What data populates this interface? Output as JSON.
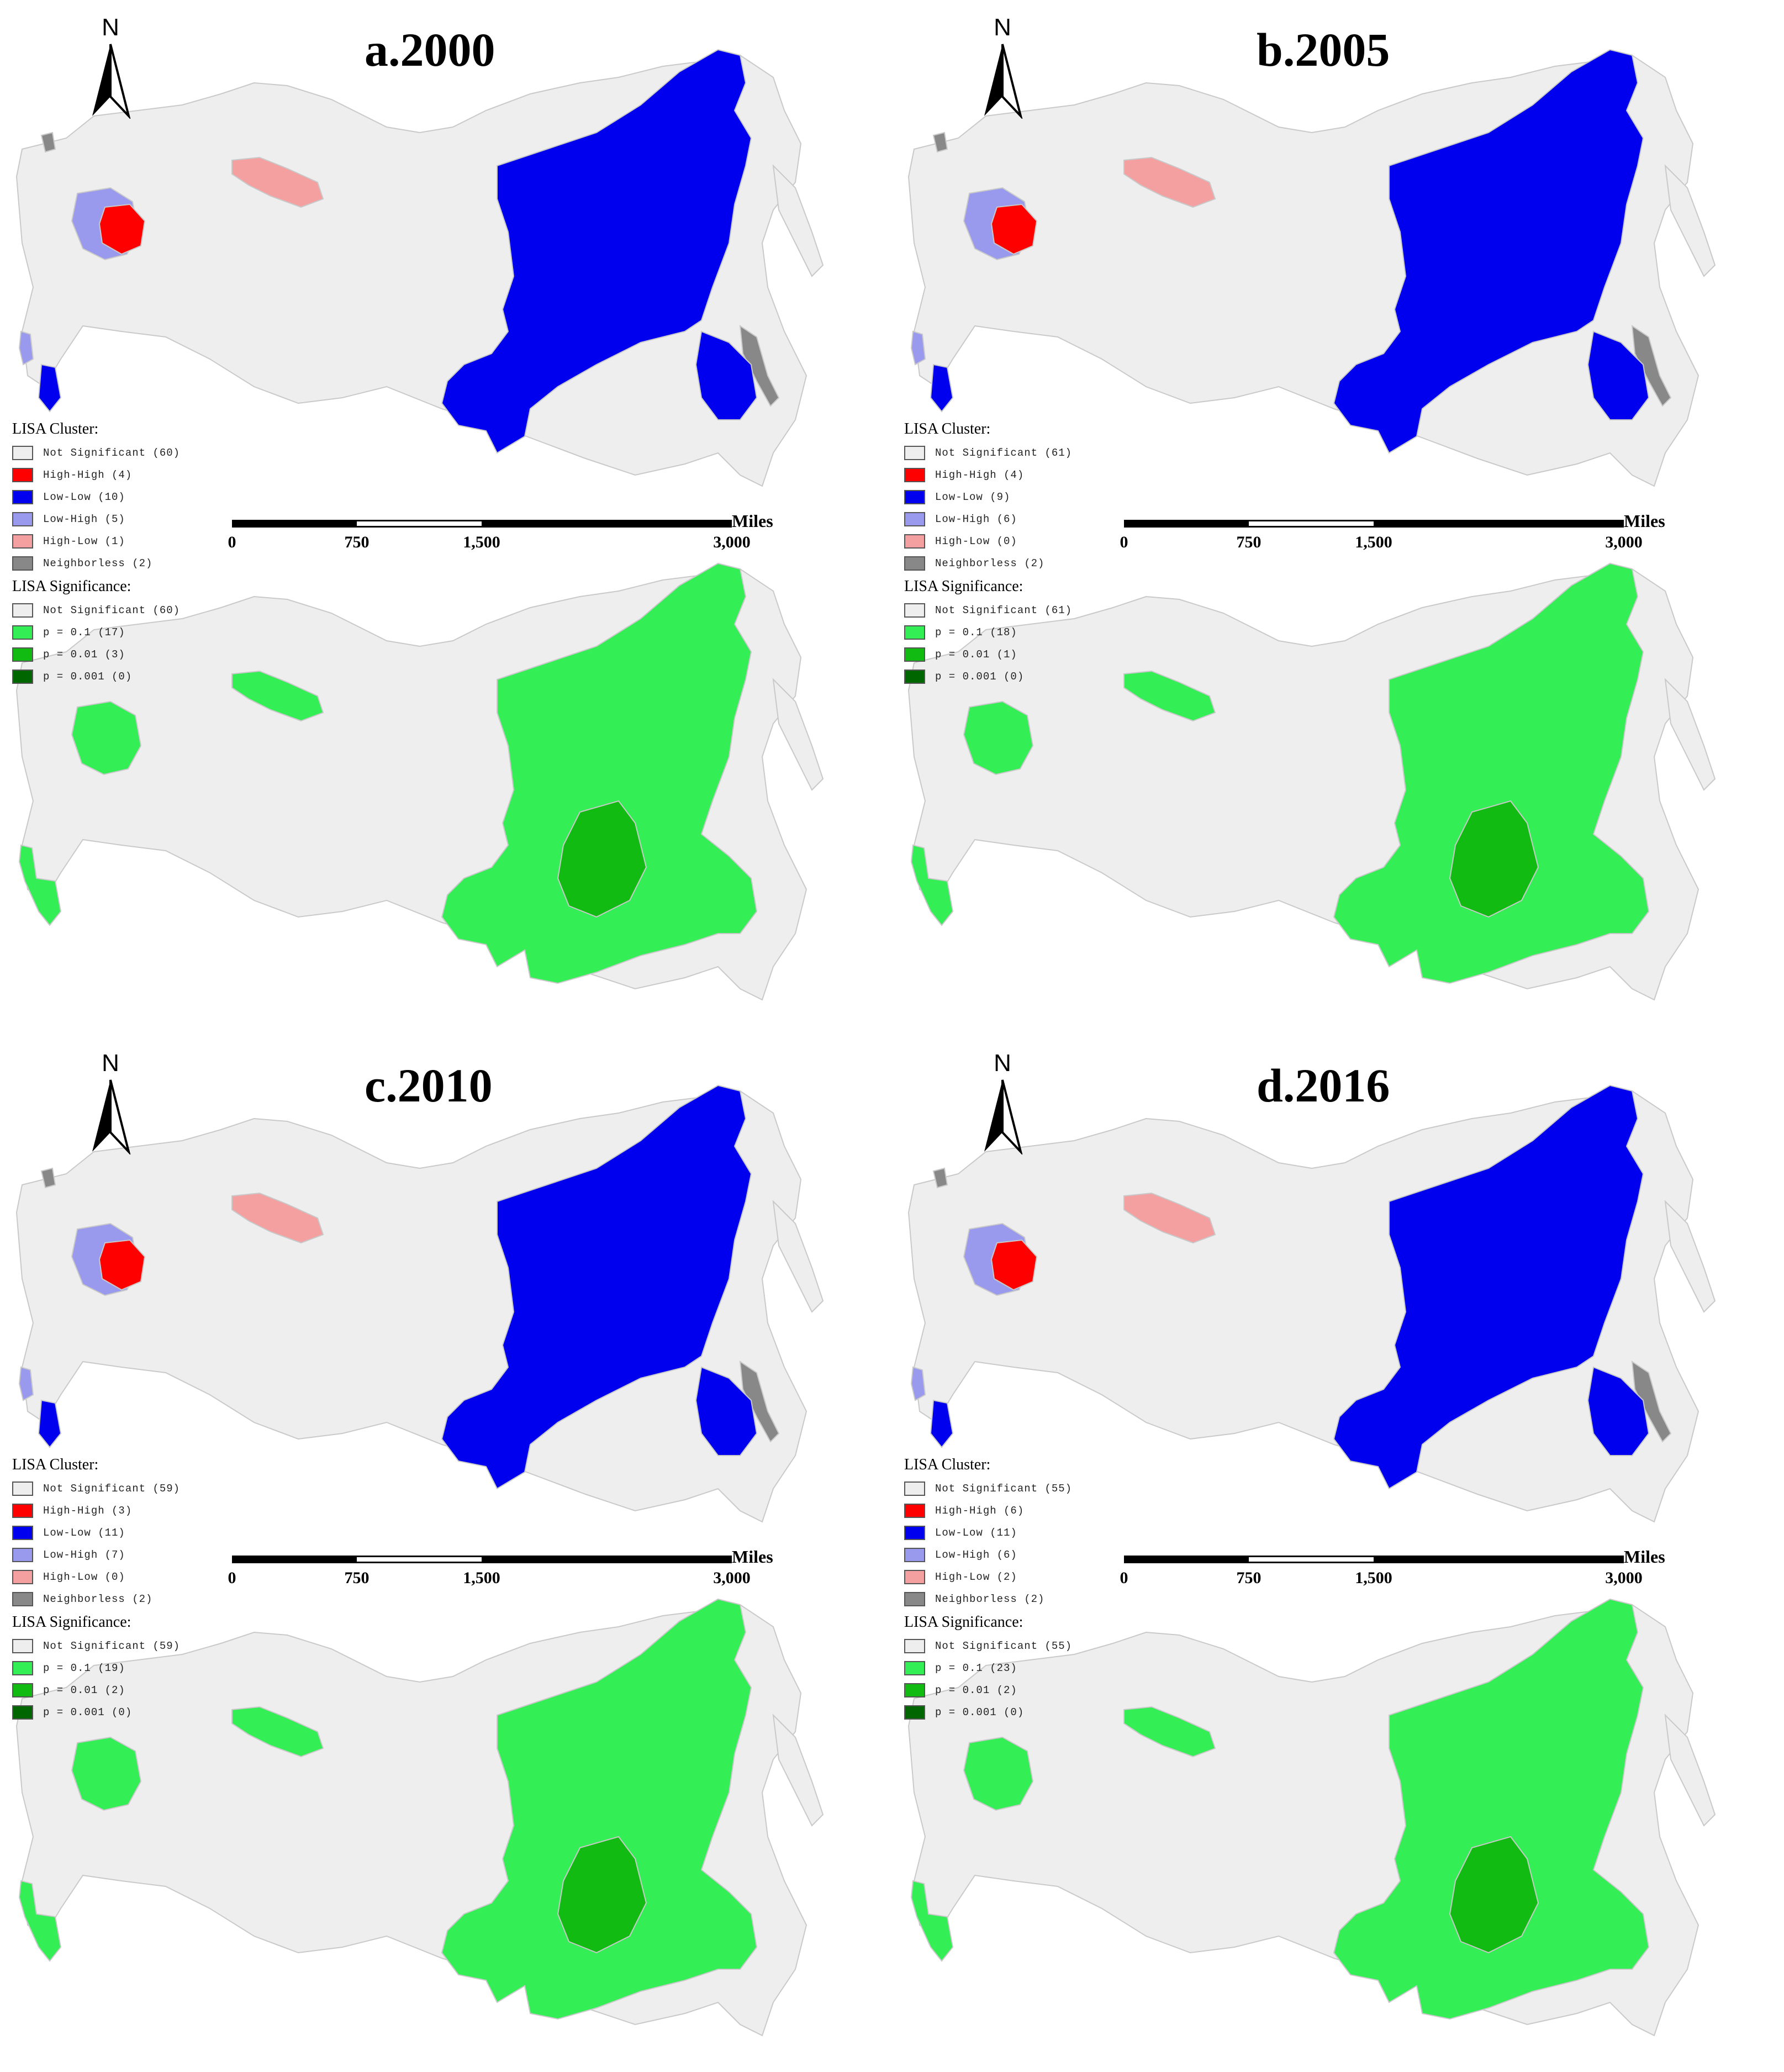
{
  "colors": {
    "not_significant": "#eeeeee",
    "high_high": "#ff0000",
    "low_low": "#0000ee",
    "low_high": "#9999ee",
    "high_low": "#f4a0a0",
    "neighborless": "#888888",
    "p_0_1": "#33ee55",
    "p_0_01": "#11bb11",
    "p_0_001": "#006600",
    "border": "#c9c9c9"
  },
  "north_label": "N",
  "scale": {
    "unit": "Miles",
    "ticks": [
      "0",
      "750",
      "1,500",
      "3,000"
    ]
  },
  "cluster_legend_title": "LISA Cluster:",
  "significance_legend_title": "LISA Significance:",
  "panels": [
    {
      "title": "a.2000",
      "cluster": {
        "not_significant": "Not Significant (60)",
        "high_high": "High-High (4)",
        "low_low": "Low-Low (10)",
        "low_high": "Low-High (5)",
        "high_low": "High-Low (1)",
        "neighborless": "Neighborless (2)"
      },
      "significance": {
        "not_significant": "Not Significant (60)",
        "p_0_1": "p = 0.1 (17)",
        "p_0_01": "p = 0.01 (3)",
        "p_0_001": "p = 0.001 (0)"
      }
    },
    {
      "title": "b.2005",
      "cluster": {
        "not_significant": "Not Significant (61)",
        "high_high": "High-High (4)",
        "low_low": "Low-Low (9)",
        "low_high": "Low-High (6)",
        "high_low": "High-Low (0)",
        "neighborless": "Neighborless (2)"
      },
      "significance": {
        "not_significant": "Not Significant (61)",
        "p_0_1": "p = 0.1 (18)",
        "p_0_01": "p = 0.01 (1)",
        "p_0_001": "p = 0.001 (0)"
      }
    },
    {
      "title": "c.2010",
      "cluster": {
        "not_significant": "Not Significant (59)",
        "high_high": "High-High (3)",
        "low_low": "Low-Low (11)",
        "low_high": "Low-High (7)",
        "high_low": "High-Low (0)",
        "neighborless": "Neighborless (2)"
      },
      "significance": {
        "not_significant": "Not Significant (59)",
        "p_0_1": "p = 0.1 (19)",
        "p_0_01": "p = 0.01 (2)",
        "p_0_001": "p = 0.001 (0)"
      }
    },
    {
      "title": "d.2016",
      "cluster": {
        "not_significant": "Not Significant (55)",
        "high_high": "High-High (6)",
        "low_low": "Low-Low (11)",
        "low_high": "Low-High (6)",
        "high_low": "High-Low (2)",
        "neighborless": "Neighborless (2)"
      },
      "significance": {
        "not_significant": "Not Significant (55)",
        "p_0_1": "p = 0.1 (23)",
        "p_0_01": "p = 0.01 (2)",
        "p_0_001": "p = 0.001 (0)"
      }
    }
  ]
}
